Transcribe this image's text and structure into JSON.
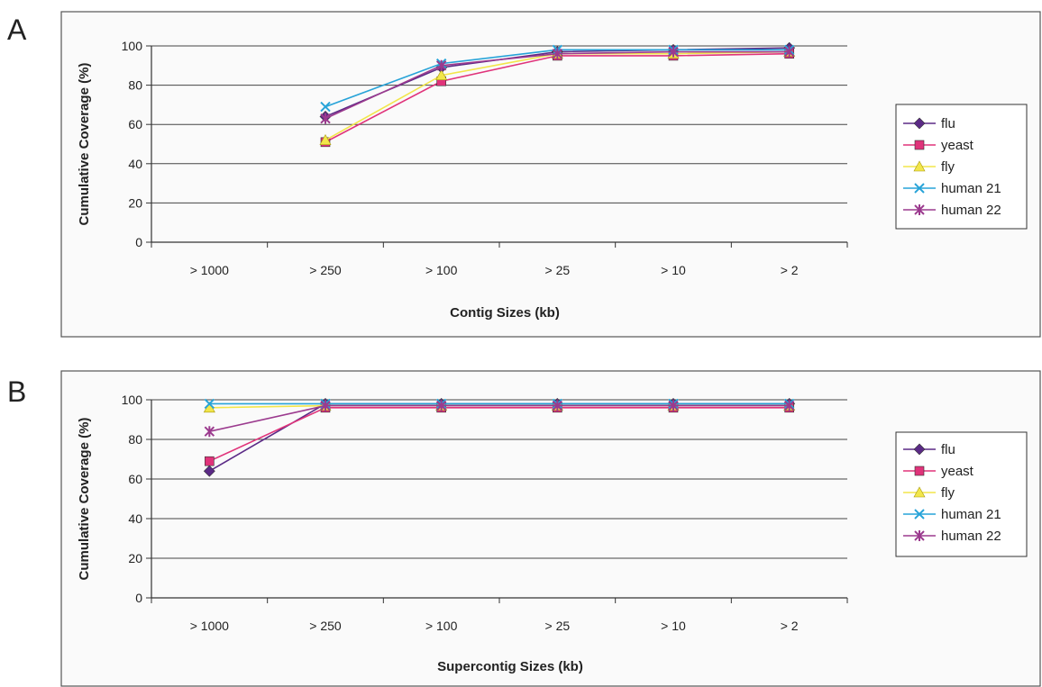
{
  "chart_data": [
    {
      "panel": "A",
      "type": "line",
      "categories": [
        "> 1000",
        "> 250",
        "> 100",
        "> 25",
        "> 10",
        "> 2"
      ],
      "xlabel": "Contig Sizes (kb)",
      "ylabel": "Cumulative Coverage (%)",
      "ylim": [
        0,
        100
      ],
      "yticks": [
        0,
        20,
        40,
        60,
        80,
        100
      ],
      "grid": true,
      "legend_position": "right",
      "series": [
        {
          "name": "flu",
          "color": "#5b2a86",
          "marker": "diamond",
          "values": [
            null,
            64,
            89,
            97,
            98,
            99
          ]
        },
        {
          "name": "yeast",
          "color": "#e0337a",
          "marker": "square",
          "values": [
            null,
            51,
            82,
            95,
            95,
            96
          ]
        },
        {
          "name": "fly",
          "color": "#f2e64a",
          "marker": "triangle",
          "values": [
            null,
            52,
            85,
            96,
            96,
            97
          ]
        },
        {
          "name": "human 21",
          "color": "#27a3d8",
          "marker": "x",
          "values": [
            null,
            69,
            91,
            98,
            98,
            98
          ]
        },
        {
          "name": "human 22",
          "color": "#9b3a8e",
          "marker": "star",
          "values": [
            null,
            63,
            90,
            96,
            97,
            97
          ]
        }
      ]
    },
    {
      "panel": "B",
      "type": "line",
      "categories": [
        "> 1000",
        "> 250",
        "> 100",
        "> 25",
        "> 10",
        "> 2"
      ],
      "xlabel": "Supercontig Sizes (kb)",
      "ylabel": "Cumulative Coverage (%)",
      "ylim": [
        0,
        100
      ],
      "yticks": [
        0,
        20,
        40,
        60,
        80,
        100
      ],
      "grid": true,
      "legend_position": "right",
      "series": [
        {
          "name": "flu",
          "color": "#5b2a86",
          "marker": "diamond",
          "values": [
            64,
            98,
            98,
            98,
            98,
            98
          ]
        },
        {
          "name": "yeast",
          "color": "#e0337a",
          "marker": "square",
          "values": [
            69,
            96,
            96,
            96,
            96,
            96
          ]
        },
        {
          "name": "fly",
          "color": "#f2e64a",
          "marker": "triangle",
          "values": [
            96,
            97,
            97,
            97,
            97,
            97
          ]
        },
        {
          "name": "human 21",
          "color": "#27a3d8",
          "marker": "x",
          "values": [
            98,
            98,
            98,
            98,
            98,
            98
          ]
        },
        {
          "name": "human 22",
          "color": "#9b3a8e",
          "marker": "star",
          "values": [
            84,
            97,
            97,
            97,
            97,
            97
          ]
        }
      ]
    }
  ]
}
